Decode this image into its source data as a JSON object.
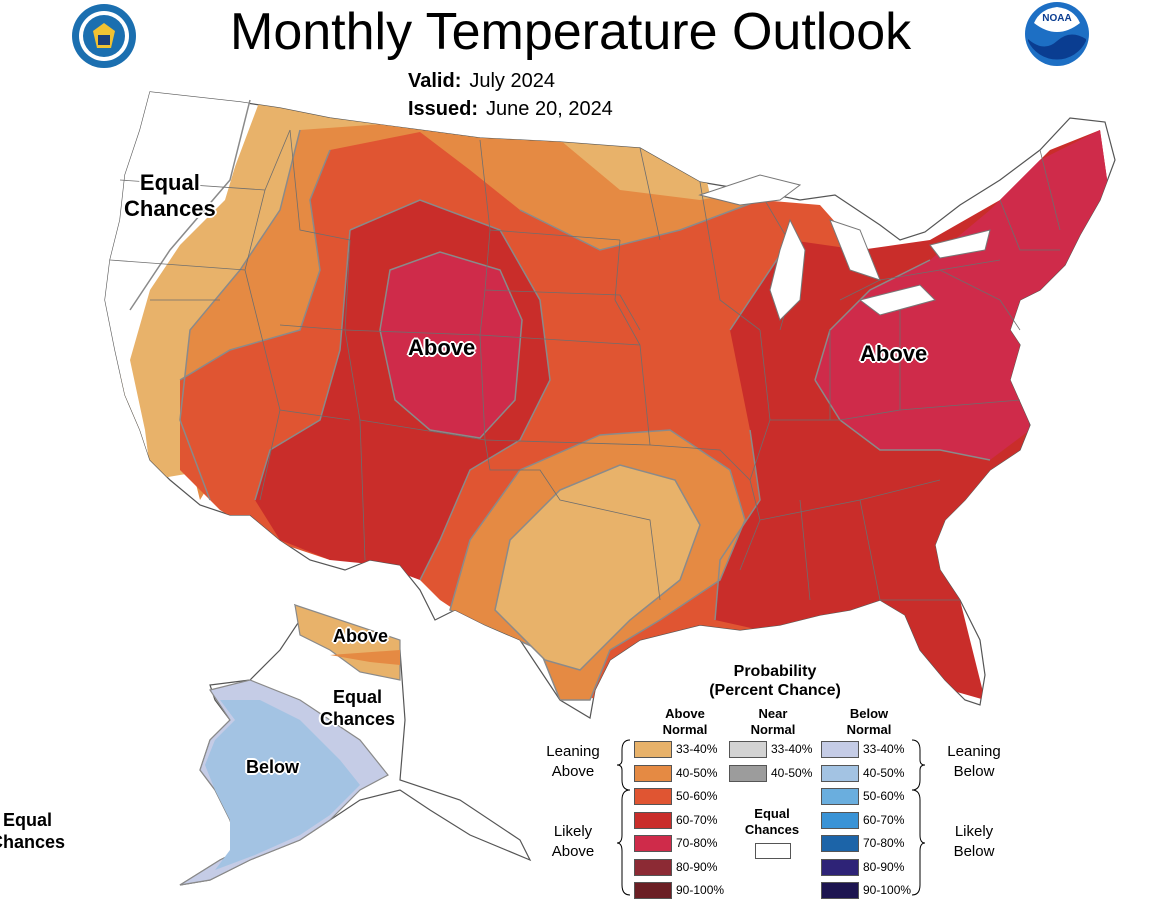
{
  "title": "Monthly Temperature Outlook",
  "valid": {
    "label": "Valid:",
    "value": "July 2024"
  },
  "issued": {
    "label": "Issued:",
    "value": "June 20, 2024"
  },
  "map_labels": {
    "west_equal": "Equal\nChances",
    "west_above": "Above",
    "east_above": "Above",
    "ak_above": "Above",
    "ak_equal": "Equal\nChances",
    "ak_below": "Below",
    "hawaii_equal": "Equal\nChances"
  },
  "legend": {
    "title": "Probability\n(Percent Chance)",
    "col_above": "Above\nNormal",
    "col_near": "Near\nNormal",
    "col_below": "Below\nNormal",
    "leaning_above": "Leaning\nAbove",
    "likely_above": "Likely\nAbove",
    "leaning_below": "Leaning\nBelow",
    "likely_below": "Likely\nBelow",
    "equal_chances": "Equal\nChances",
    "above": [
      {
        "range": "33-40%",
        "color": "#e8b26a"
      },
      {
        "range": "40-50%",
        "color": "#e58a43"
      },
      {
        "range": "50-60%",
        "color": "#e05532"
      },
      {
        "range": "60-70%",
        "color": "#c92d2a"
      },
      {
        "range": "70-80%",
        "color": "#cf2b4a"
      },
      {
        "range": "80-90%",
        "color": "#8c2a34"
      },
      {
        "range": "90-100%",
        "color": "#6b1e24"
      }
    ],
    "near": [
      {
        "range": "33-40%",
        "color": "#d3d3d3"
      },
      {
        "range": "40-50%",
        "color": "#9c9c9c"
      }
    ],
    "below": [
      {
        "range": "33-40%",
        "color": "#c5cce6"
      },
      {
        "range": "40-50%",
        "color": "#a3c3e3"
      },
      {
        "range": "50-60%",
        "color": "#6aaede"
      },
      {
        "range": "60-70%",
        "color": "#3a93d6"
      },
      {
        "range": "70-80%",
        "color": "#1c64a8"
      },
      {
        "range": "80-90%",
        "color": "#2e2377"
      },
      {
        "range": "90-100%",
        "color": "#1d1550"
      }
    ]
  },
  "colors": {
    "state_border": "#6e6e6e",
    "contour": "#8a8a8a",
    "water": "#ffffff"
  }
}
